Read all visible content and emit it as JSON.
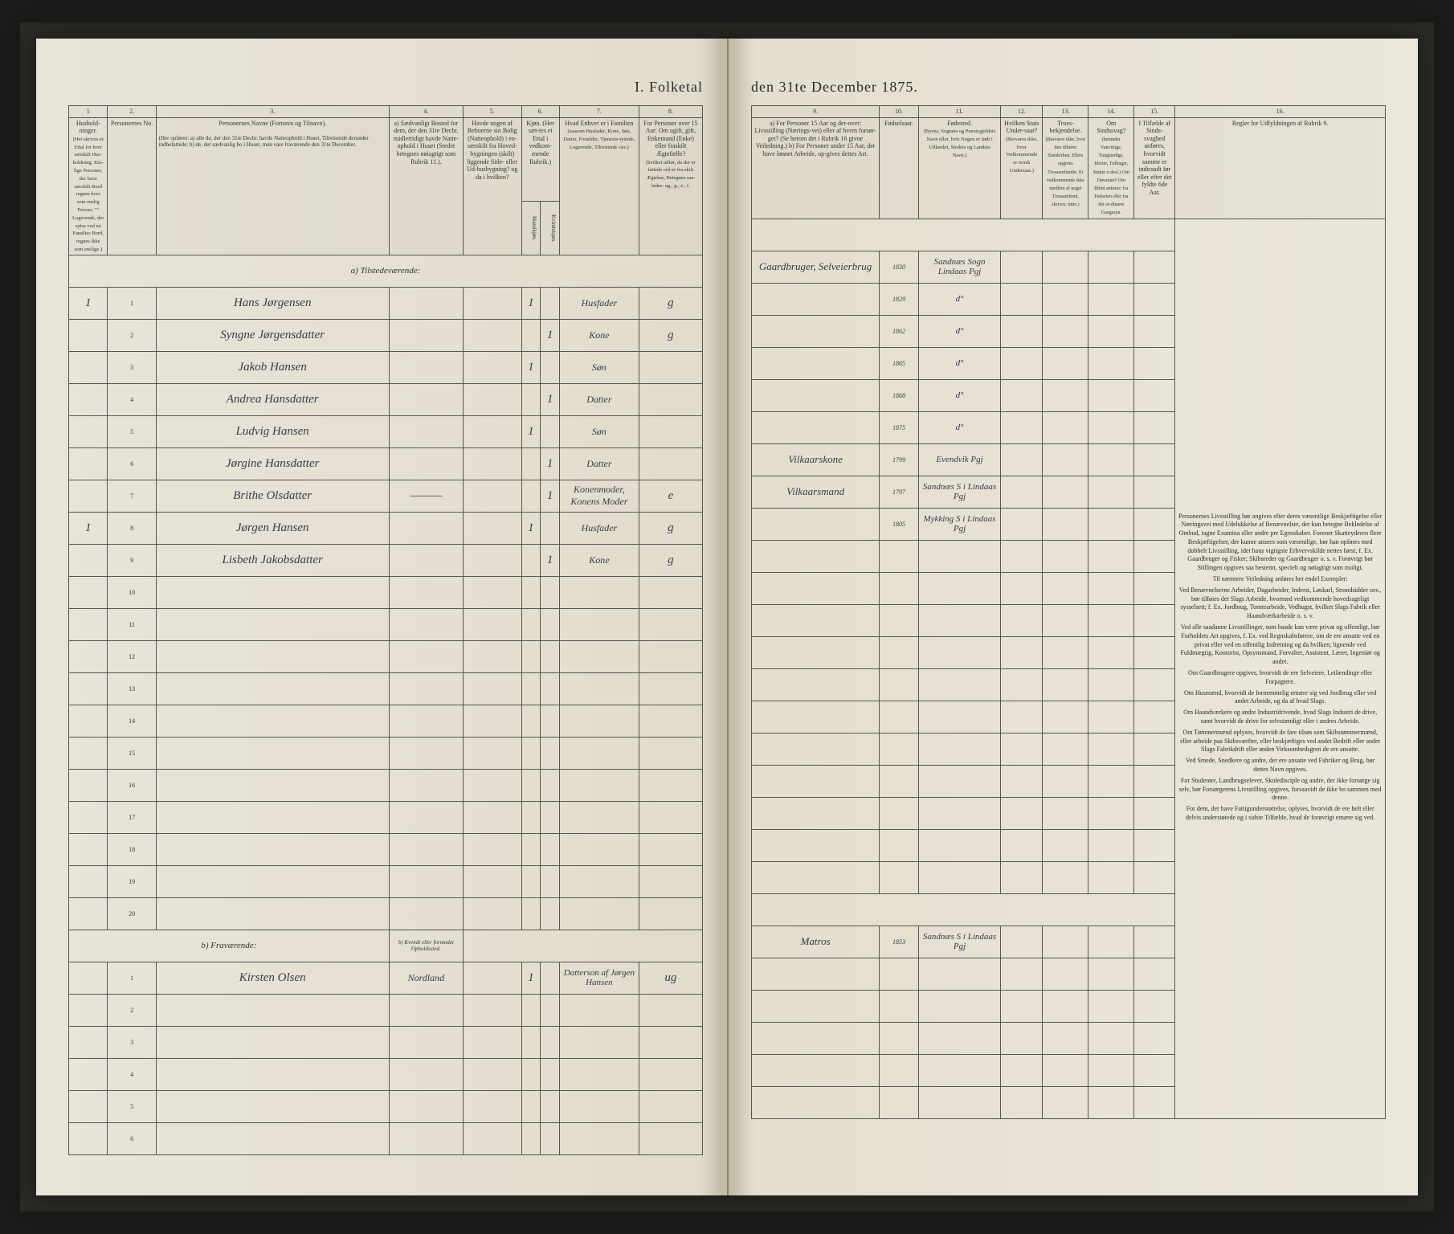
{
  "document": {
    "title_left": "I. Folketal",
    "title_right": "den 31te December 1875.",
    "type": "census-register"
  },
  "left_page": {
    "column_numbers": [
      "1",
      "2.",
      "3.",
      "4.",
      "5.",
      "6.",
      "7.",
      "8."
    ],
    "headers": {
      "c1": "Hushold-ninger.",
      "c1_sub": "(Her skrives et Ettal for hver særskilt Hus-holdning; Ens-lige Personer, der have særskilt Bord regnes hver som enslig Person; \"\" Logerende, der spise ved en Families Bord, regnes ikke som enslige.)",
      "c2": "Personernes No.",
      "c3": "Personernes Navne (Fornavn og Tilnavn).",
      "c3_sub": "(Her opføres:\na) alle de, der den 31te Decbr. havde Natteophold i Huset, Tilreisende derunder indbefattede;\nb) de, der sædvanlig bo i Huset, men vare fraværende den 31te December.",
      "c4": "a) Sædvanligt Bosted for dem, der den 31te Decbr. midlertidigt havde Natte-ophold i Huset (Stedet betegnes nøiagtigt som Rubrik 11.).",
      "c5": "Havde nogen af Beboerne sin Bolig (Natteophold) i en- særskilt fra Hoved-bygningen (skilt) liggende Side- eller Ud-husbygning? og da i hvilken?",
      "c6": "Kjøn. (Her sæt-tes et Ettal i vedkom-mende Rubrik.)",
      "c6_m": "Mandkjøn.",
      "c6_k": "Kvindekjøn.",
      "c7": "Hvad Enhver er i Familien",
      "c7_sub": "(saasom Husfader, Kone, Søn, Datter, Forældre, Tjeneste-tyende, Logerende, Tilreisende osv.)",
      "c8": "For Personer over 15 Aar: Om ugift, gift, Enkemand (Enke) eller fraskilt Ægtefælle?",
      "c8_sub": "(hvilket udfør, da der er fattede ord er fra-skilt Ægtekar, Betegnes saa-ledes: ug., g., e., f."
    },
    "section_a": "a) Tilstedeværende:",
    "section_b": "b) Fraværende:",
    "section_b_col4": "b) Kvendt eller formodet Opholdssted.",
    "rows_a": [
      {
        "hh": "1",
        "no": "1",
        "name": "Hans Jørgensen",
        "c4": "",
        "c5": "",
        "m": "1",
        "k": "",
        "fam": "Husfader",
        "stat": "g"
      },
      {
        "hh": "",
        "no": "2",
        "name": "Syngne Jørgensdatter",
        "c4": "",
        "c5": "",
        "m": "",
        "k": "1",
        "fam": "Kone",
        "stat": "g"
      },
      {
        "hh": "",
        "no": "3",
        "name": "Jakob Hansen",
        "c4": "",
        "c5": "",
        "m": "1",
        "k": "",
        "fam": "Søn",
        "stat": ""
      },
      {
        "hh": "",
        "no": "4",
        "name": "Andrea Hansdatter",
        "c4": "",
        "c5": "",
        "m": "",
        "k": "1",
        "fam": "Datter",
        "stat": ""
      },
      {
        "hh": "",
        "no": "5",
        "name": "Ludvig Hansen",
        "c4": "",
        "c5": "",
        "m": "1",
        "k": "",
        "fam": "Søn",
        "stat": ""
      },
      {
        "hh": "",
        "no": "6",
        "name": "Jørgine Hansdatter",
        "c4": "",
        "c5": "",
        "m": "",
        "k": "1",
        "fam": "Datter",
        "stat": ""
      },
      {
        "hh": "",
        "no": "7",
        "name": "Brithe Olsdatter",
        "c4": "———",
        "c5": "",
        "m": "",
        "k": "1",
        "fam": "Konenmoder, Konens Moder",
        "stat": "e"
      },
      {
        "hh": "1",
        "no": "8",
        "name": "Jørgen Hansen",
        "c4": "",
        "c5": "",
        "m": "1",
        "k": "",
        "fam": "Husfader",
        "stat": "g"
      },
      {
        "hh": "",
        "no": "9",
        "name": "Lisbeth Jakobsdatter",
        "c4": "",
        "c5": "",
        "m": "",
        "k": "1",
        "fam": "Kone",
        "stat": "g"
      }
    ],
    "empty_rows_a": [
      "10",
      "11",
      "12",
      "13",
      "14",
      "15",
      "16",
      "17",
      "18",
      "19",
      "20"
    ],
    "rows_b": [
      {
        "hh": "",
        "no": "1",
        "name": "Kirsten Olsen",
        "c4": "Nordland",
        "c5": "",
        "m": "1",
        "k": "",
        "fam": "Datterson af Jørgen Hansen",
        "stat": "ug"
      }
    ],
    "empty_rows_b": [
      "2",
      "3",
      "4",
      "5",
      "6"
    ]
  },
  "right_page": {
    "column_numbers": [
      "9.",
      "10.",
      "11.",
      "12.",
      "13.",
      "14.",
      "15.",
      "16."
    ],
    "headers": {
      "c9": "a) For Personer 15 Aar og der-over: Livsstilling (Nærings-vei) eller af hvem forsør-get? (Se herom det i Rubrik 16 givne Veiledning.)\nb) For Personer under 15 Aar, der have lønnet Arbeide, op-gives dettes Art.",
      "c10": "Fødselsaar.",
      "c11": "Fødested.",
      "c11_sub": "(Byens, Sognets og Præstegjeldets Navn eller, hvis Nogen er født i Udlandet, Stedets og Landets Navn.)",
      "c12": "Hvilken Stats Under-saat?",
      "c12_sub": "(Besvares ikke, hvor Vedkommende er norsk Undersaat.)",
      "c13": "Troes-bekjendelse.",
      "c13_sub": "(Besvares ikke, hvor den tilhører Statskirken. Ellers opgives Trossamfundet. Er vedkommende ikke medlem af noget Trossamfund, skrives: intet.)",
      "c14": "Om Sindssvag?",
      "c14_sub": "(herunder Vanvittige, Tungsindige, Idioter, Tullinger, Sinker o.desl.) Om Døvstum? Om Blind anføres: fra Fødselen eller fra det or-dinære Gangssyn.",
      "c15": "I Tilfælde af Sinds-svaghed anføres, hvorvidt samme er indtraadt før eller efter det fyldte 6de Aar.",
      "c16_title": "Regler for Udfyldningen af Rubrik 9."
    },
    "rows": [
      {
        "c9": "Gaardbruger, Selveierbrug",
        "c10": "1830",
        "c11": "Sandnæs Sogn Lindaas Pgj"
      },
      {
        "c9": "",
        "c10": "1829",
        "c11": "d°"
      },
      {
        "c9": "",
        "c10": "1862",
        "c11": "d°"
      },
      {
        "c9": "",
        "c10": "1865",
        "c11": "d°"
      },
      {
        "c9": "",
        "c10": "1868",
        "c11": "d°"
      },
      {
        "c9": "",
        "c10": "1875",
        "c11": "d°"
      },
      {
        "c9": "Vilkaarskone",
        "c10": "1799",
        "c11": "Evendvik Pgj"
      },
      {
        "c9": "Vilkaarsmand",
        "c10": "1797",
        "c11": "Sandnæs S i Lindaas Pgj"
      },
      {
        "c9": "",
        "c10": "1805",
        "c11": "Mykking S i Lindaas Pgj"
      }
    ],
    "rows_b": [
      {
        "c9": "Matros",
        "c10": "1853",
        "c11": "Sandnæs S i Lindaas Pgj"
      }
    ],
    "rules": {
      "title": "Personernes Livsstilling bør angives efter deres væsentlige Beskjæftigelse eller Næringsvei med Udelukkelse af Benævnelser, der kun betegne Bekledelse af Ombud, tagne Examina eller andre pre Egenskaber. Forener Skatteyderen flere Beskjæftigelser, der kunne ansees som væsentlige, bør han opføres med dobbelt Livsstilling, idet hans vigtigste Erhvervskilde nettes først; f. Ex. Gaardbruger og Fisker; Skibsreder og Gaardbruger o. s. v. Forøvrigt bør Stillingen opgives saa bestemt, specielt og nøiagtigt som muligt.",
      "p1": "Til nærmere Veiledning anføres her endel Exempler:",
      "p2": "Ved Benævnelserne Arbeider, Dagarbeider, Inderst, Løskarl, Strandsidder osv., bør tilføies det Slags Arbeide, hvormed vedkommende hovedsageligt sysselsett; f. Ex. Jordbrug, Tomtearbeide, Vedhugst, hvilket Slags Fabrik eller Haandværkarbeide o. s. v.",
      "p3": "Ved alle saadanne Livsstillinger, som baade kan være privat og offentligt, bør Forholdets Art opgives, f. Ex. ved Regnskabsførere, om de ere ansatte ved en privat eller ved en offentlig Indretning og da hvilken; lignende ved Fuldmægtig, Kontorist, Opsynsmand, Forvalter, Assistent, Lærer, Ingeniør og andet.",
      "p4": "Om Gaardbrugere opgives, hvorvidt de ere Selveiere, Leilændinge eller Forpagtere.",
      "p5": "Om Husmænd, hvorvidt de fornemmelig ernære sig ved Jordbrug eller ved andet Arbeide, og da af hvad Slags.",
      "p6": "Om Haandværkere og andre Industridrivende, hvad Slags Industri de drive, samt hvorvidt de drive for selvstændigt eller i andres Arbeide.",
      "p7": "Om Tømmermænd oplyses, hvorvidt de fare tilsøs som Skibstømmermænd, eller arbeide paa Skibsværfter, eller beskjæftiges ved andet Bedrift eller andre Slags Fabrikdrift eller anden Virksomhedsgren de ere ansatte.",
      "p8": "Ved Smede, Snedkere og andre, der ere ansatte ved Fabriker og Brug, bør dettes Navn opgives.",
      "p9": "For Studenter, Landbrugselever, Skoledisciple og andre, der ikke forsørge sig selv, bør Forsørgerens Livsstilling opgives, forsaavidt de ikke bo sammen med denne.",
      "p10": "For dem, der have Fattigunderstøttelse, oplyses, hvorvidt de ere helt eller delvis understøtede og i sidste Tilfælde, hvad de forøvrigt ernære sig ved."
    }
  },
  "colors": {
    "paper": "#e8e4d8",
    "ink": "#2a2a2a",
    "handwriting": "#3a3a4a",
    "border": "#555"
  }
}
